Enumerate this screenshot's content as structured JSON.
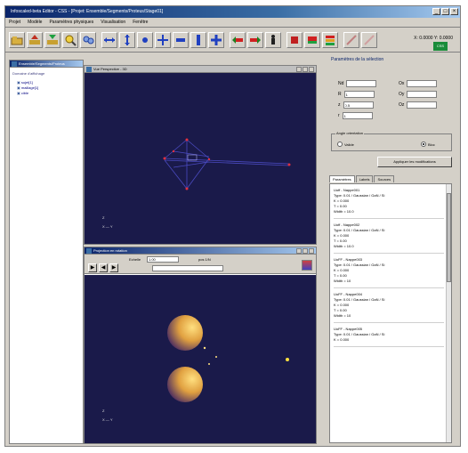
{
  "window": {
    "title": "Infoscaled-beta Editor - CSS - [Projet: Ensemble/Segments/Proteus/Stage01]"
  },
  "menu": [
    "Projet",
    "Modèle",
    "Paramètres physiques",
    "Visualisation",
    "Fenêtre"
  ],
  "toolbar": {
    "coords": "X: 0.0000  Y: 0.0000",
    "logo_label": "CSS"
  },
  "tree_panel": {
    "title": "Ensemble/Segments/Proteus",
    "root": "Domaine d'affichage",
    "nodes": [
      "sujet[1]",
      "maillage[1]",
      "cible"
    ]
  },
  "view_top": {
    "title": "Vue Perspective - 3D",
    "axis_z": "Z",
    "axis_xy": "X — Y"
  },
  "view_bottom": {
    "title": "Projection en rotation",
    "label_scale": "Echelle",
    "scale_value": "1.00",
    "label_pos": "pos 1/N",
    "axis_z": "Z",
    "axis_xy": "X — Y"
  },
  "right": {
    "title": "Paramètres de la sélection",
    "fields": [
      {
        "label": "Nd",
        "value": ""
      },
      {
        "label": "Ox",
        "value": ""
      },
      {
        "label": "R",
        "value": "1"
      },
      {
        "label": "Oy",
        "value": ""
      },
      {
        "label": "z",
        "value": "0.5"
      },
      {
        "label": "Oz",
        "value": ""
      },
      {
        "label": "r",
        "value": "1"
      }
    ],
    "group_label": "Angle orientation",
    "radio_left": "Valide",
    "radio_right": "Bloc",
    "apply": "Appliquer les modifications",
    "tabs": [
      "Paramètres",
      "Labels",
      "Sources"
    ],
    "items": [
      {
        "name": "Uoff - Nappe001",
        "type": "Type: 0.01 / Gaussian / GaN / Si",
        "k": "K = 0.000",
        "t": "T = 0.00",
        "width": "Width = 10.0"
      },
      {
        "name": "Uoff - Nappe002",
        "type": "Type: 0.01 / Gaussian / GaN / Si",
        "k": "K = 0.000",
        "t": "T = 0.00",
        "width": "Width = 10.0"
      },
      {
        "name": "UoFF - Nappe003",
        "type": "Type: 0.01 / Gaussian / GaN / Si",
        "k": "K = 0.000",
        "t": "T = 0.00",
        "width": "Width = 10"
      },
      {
        "name": "UoFF - Nappe004",
        "type": "Type: 0.01 / Gaussian / GaN / Si",
        "k": "K = 0.000",
        "t": "T = 0.00",
        "width": "Width = 10"
      },
      {
        "name": "UoFF - Nappe005",
        "type": "Type: 0.01 / Gaussian / GaN / Si",
        "k": "K = 0.000",
        "t": "",
        "width": ""
      }
    ]
  },
  "colors": {
    "view_bg": "#1a1a4a",
    "accent": "#0a246a"
  }
}
